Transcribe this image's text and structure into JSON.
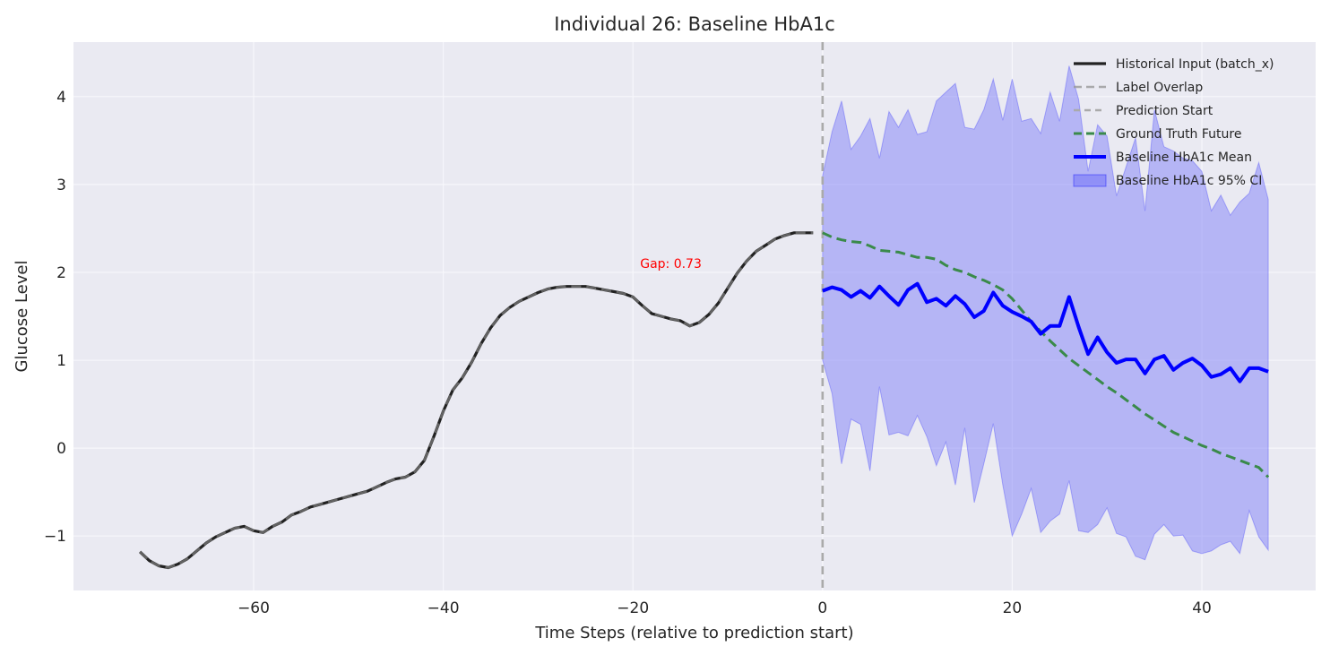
{
  "chart_data": {
    "type": "line",
    "title": "Individual 26: Baseline HbA1c",
    "xlabel": "Time Steps (relative to prediction start)",
    "ylabel": "Glucose Level",
    "xlim": [
      -79,
      52
    ],
    "ylim": [
      -1.62,
      4.62
    ],
    "xticks": [
      -60,
      -40,
      -20,
      0,
      20,
      40
    ],
    "yticks": [
      -1,
      0,
      1,
      2,
      3,
      4
    ],
    "grid": true,
    "legend_position": "top-right",
    "prediction_start_x": 0,
    "annotation": {
      "text": "Gap: 0.73",
      "x": -16,
      "y": 2.1,
      "color": "#ff0000"
    },
    "colors": {
      "historical": "#222222",
      "overlap": "#999999",
      "prediction_start": "#aaaaaa",
      "ground_truth": "#3a8a4a",
      "mean": "#0000ff",
      "ci_fill": "#8080f8",
      "background": "#eaeaf2",
      "grid": "#f7f7fb"
    },
    "series": [
      {
        "name": "Historical Input (batch_x)",
        "style": "solid",
        "x": [
          -72,
          -71,
          -70,
          -69,
          -68,
          -67,
          -66,
          -65,
          -64,
          -63,
          -62,
          -61,
          -60,
          -59,
          -58,
          -57,
          -56,
          -55,
          -54,
          -53,
          -52,
          -51,
          -50,
          -49,
          -48,
          -47,
          -46,
          -45,
          -44,
          -43,
          -42,
          -41,
          -40,
          -39,
          -38,
          -37,
          -36,
          -35,
          -34,
          -33,
          -32,
          -31,
          -30,
          -29,
          -28,
          -27,
          -26,
          -25,
          -24,
          -23,
          -22,
          -21,
          -20,
          -19,
          -18,
          -17,
          -16,
          -15,
          -14,
          -13,
          -12,
          -11,
          -10,
          -9,
          -8,
          -7,
          -6,
          -5,
          -4,
          -3,
          -2,
          -1
        ],
        "values": [
          -1.18,
          -1.28,
          -1.34,
          -1.36,
          -1.32,
          -1.26,
          -1.17,
          -1.08,
          -1.01,
          -0.96,
          -0.91,
          -0.89,
          -0.94,
          -0.96,
          -0.89,
          -0.84,
          -0.76,
          -0.72,
          -0.67,
          -0.64,
          -0.61,
          -0.58,
          -0.55,
          -0.52,
          -0.49,
          -0.44,
          -0.39,
          -0.35,
          -0.33,
          -0.27,
          -0.14,
          0.13,
          0.42,
          0.66,
          0.8,
          0.98,
          1.19,
          1.37,
          1.51,
          1.6,
          1.67,
          1.72,
          1.77,
          1.81,
          1.83,
          1.84,
          1.84,
          1.84,
          1.82,
          1.8,
          1.78,
          1.76,
          1.72,
          1.62,
          1.53,
          1.5,
          1.47,
          1.45,
          1.39,
          1.43,
          1.52,
          1.65,
          1.82,
          1.99,
          2.13,
          2.24,
          2.31,
          2.38,
          2.42,
          2.45,
          2.45,
          2.45
        ]
      },
      {
        "name": "Label Overlap",
        "style": "dashed",
        "x": [
          -72,
          -71,
          -70,
          -69,
          -68,
          -67,
          -66,
          -65,
          -64,
          -63,
          -62,
          -61,
          -60,
          -59,
          -58,
          -57,
          -56,
          -55,
          -54,
          -53,
          -52,
          -51,
          -50,
          -49,
          -48,
          -47,
          -46,
          -45,
          -44,
          -43,
          -42,
          -41,
          -40,
          -39,
          -38,
          -37,
          -36,
          -35,
          -34,
          -33,
          -32,
          -31,
          -30,
          -29,
          -28,
          -27,
          -26,
          -25,
          -24,
          -23,
          -22,
          -21,
          -20,
          -19,
          -18,
          -17,
          -16,
          -15,
          -14,
          -13,
          -12,
          -11,
          -10,
          -9,
          -8,
          -7,
          -6,
          -5,
          -4,
          -3,
          -2,
          -1
        ],
        "values": [
          -1.18,
          -1.28,
          -1.34,
          -1.36,
          -1.32,
          -1.26,
          -1.17,
          -1.08,
          -1.01,
          -0.96,
          -0.91,
          -0.89,
          -0.94,
          -0.96,
          -0.89,
          -0.84,
          -0.76,
          -0.72,
          -0.67,
          -0.64,
          -0.61,
          -0.58,
          -0.55,
          -0.52,
          -0.49,
          -0.44,
          -0.39,
          -0.35,
          -0.33,
          -0.27,
          -0.14,
          0.13,
          0.42,
          0.66,
          0.8,
          0.98,
          1.19,
          1.37,
          1.51,
          1.6,
          1.67,
          1.72,
          1.77,
          1.81,
          1.83,
          1.84,
          1.84,
          1.84,
          1.82,
          1.8,
          1.78,
          1.76,
          1.72,
          1.62,
          1.53,
          1.5,
          1.47,
          1.45,
          1.39,
          1.43,
          1.52,
          1.65,
          1.82,
          1.99,
          2.13,
          2.24,
          2.31,
          2.38,
          2.42,
          2.45,
          2.45,
          2.45
        ]
      },
      {
        "name": "Prediction Start",
        "style": "dashed"
      },
      {
        "name": "Ground Truth Future",
        "style": "dashed",
        "x": [
          0,
          1,
          2,
          3,
          4,
          5,
          6,
          7,
          8,
          9,
          10,
          11,
          12,
          13,
          14,
          15,
          16,
          17,
          18,
          19,
          20,
          21,
          22,
          23,
          24,
          25,
          26,
          27,
          28,
          29,
          30,
          31,
          32,
          33,
          34,
          35,
          36,
          37,
          38,
          39,
          40,
          41,
          42,
          43,
          44,
          45,
          46,
          47
        ],
        "values": [
          2.45,
          2.4,
          2.37,
          2.35,
          2.34,
          2.3,
          2.25,
          2.24,
          2.23,
          2.2,
          2.17,
          2.17,
          2.15,
          2.08,
          2.03,
          2.0,
          1.95,
          1.91,
          1.86,
          1.8,
          1.7,
          1.57,
          1.44,
          1.33,
          1.22,
          1.12,
          1.02,
          0.94,
          0.86,
          0.78,
          0.7,
          0.63,
          0.55,
          0.47,
          0.39,
          0.32,
          0.25,
          0.18,
          0.13,
          0.08,
          0.03,
          -0.01,
          -0.06,
          -0.1,
          -0.14,
          -0.18,
          -0.22,
          -0.33
        ]
      },
      {
        "name": "Baseline HbA1c Mean",
        "style": "solid",
        "x": [
          0,
          1,
          2,
          3,
          4,
          5,
          6,
          7,
          8,
          9,
          10,
          11,
          12,
          13,
          14,
          15,
          16,
          17,
          18,
          19,
          20,
          21,
          22,
          23,
          24,
          25,
          26,
          27,
          28,
          29,
          30,
          31,
          32,
          33,
          34,
          35,
          36,
          37,
          38,
          39,
          40,
          41,
          42,
          43,
          44,
          45,
          46,
          47
        ],
        "values": [
          1.79,
          1.83,
          1.8,
          1.72,
          1.79,
          1.71,
          1.84,
          1.73,
          1.63,
          1.8,
          1.87,
          1.66,
          1.7,
          1.62,
          1.73,
          1.64,
          1.49,
          1.56,
          1.77,
          1.62,
          1.55,
          1.5,
          1.44,
          1.3,
          1.39,
          1.39,
          1.72,
          1.38,
          1.07,
          1.26,
          1.09,
          0.97,
          1.01,
          1.01,
          0.85,
          1.01,
          1.05,
          0.89,
          0.97,
          1.02,
          0.94,
          0.81,
          0.84,
          0.91,
          0.76,
          0.91,
          0.91,
          0.87
        ]
      },
      {
        "name": "Baseline HbA1c 95% CI",
        "style": "band",
        "x": [
          0,
          1,
          2,
          3,
          4,
          5,
          6,
          7,
          8,
          9,
          10,
          11,
          12,
          13,
          14,
          15,
          16,
          17,
          18,
          19,
          20,
          21,
          22,
          23,
          24,
          25,
          26,
          27,
          28,
          29,
          30,
          31,
          32,
          33,
          34,
          35,
          36,
          37,
          38,
          39,
          40,
          41,
          42,
          43,
          44,
          45,
          46,
          47
        ],
        "upper": [
          3.1,
          3.6,
          3.95,
          3.4,
          3.55,
          3.75,
          3.3,
          3.83,
          3.65,
          3.85,
          3.57,
          3.6,
          3.95,
          4.05,
          4.15,
          3.65,
          3.63,
          3.85,
          4.2,
          3.73,
          4.2,
          3.72,
          3.75,
          3.58,
          4.05,
          3.72,
          4.35,
          3.97,
          3.15,
          3.68,
          3.55,
          2.87,
          3.2,
          3.53,
          2.7,
          3.85,
          3.43,
          3.38,
          3.3,
          3.27,
          3.15,
          2.7,
          2.88,
          2.65,
          2.8,
          2.9,
          3.25,
          2.83
        ],
        "lower": [
          1.0,
          0.62,
          -0.18,
          0.33,
          0.27,
          -0.26,
          0.7,
          0.15,
          0.18,
          0.14,
          0.37,
          0.13,
          -0.2,
          0.07,
          -0.42,
          0.23,
          -0.62,
          -0.18,
          0.28,
          -0.42,
          -1.0,
          -0.75,
          -0.46,
          -0.96,
          -0.83,
          -0.75,
          -0.37,
          -0.94,
          -0.96,
          -0.87,
          -0.68,
          -0.97,
          -1.01,
          -1.23,
          -1.27,
          -0.98,
          -0.87,
          -1.0,
          -0.99,
          -1.17,
          -1.2,
          -1.17,
          -1.1,
          -1.06,
          -1.2,
          -0.71,
          -1.01,
          -1.16
        ]
      }
    ]
  }
}
